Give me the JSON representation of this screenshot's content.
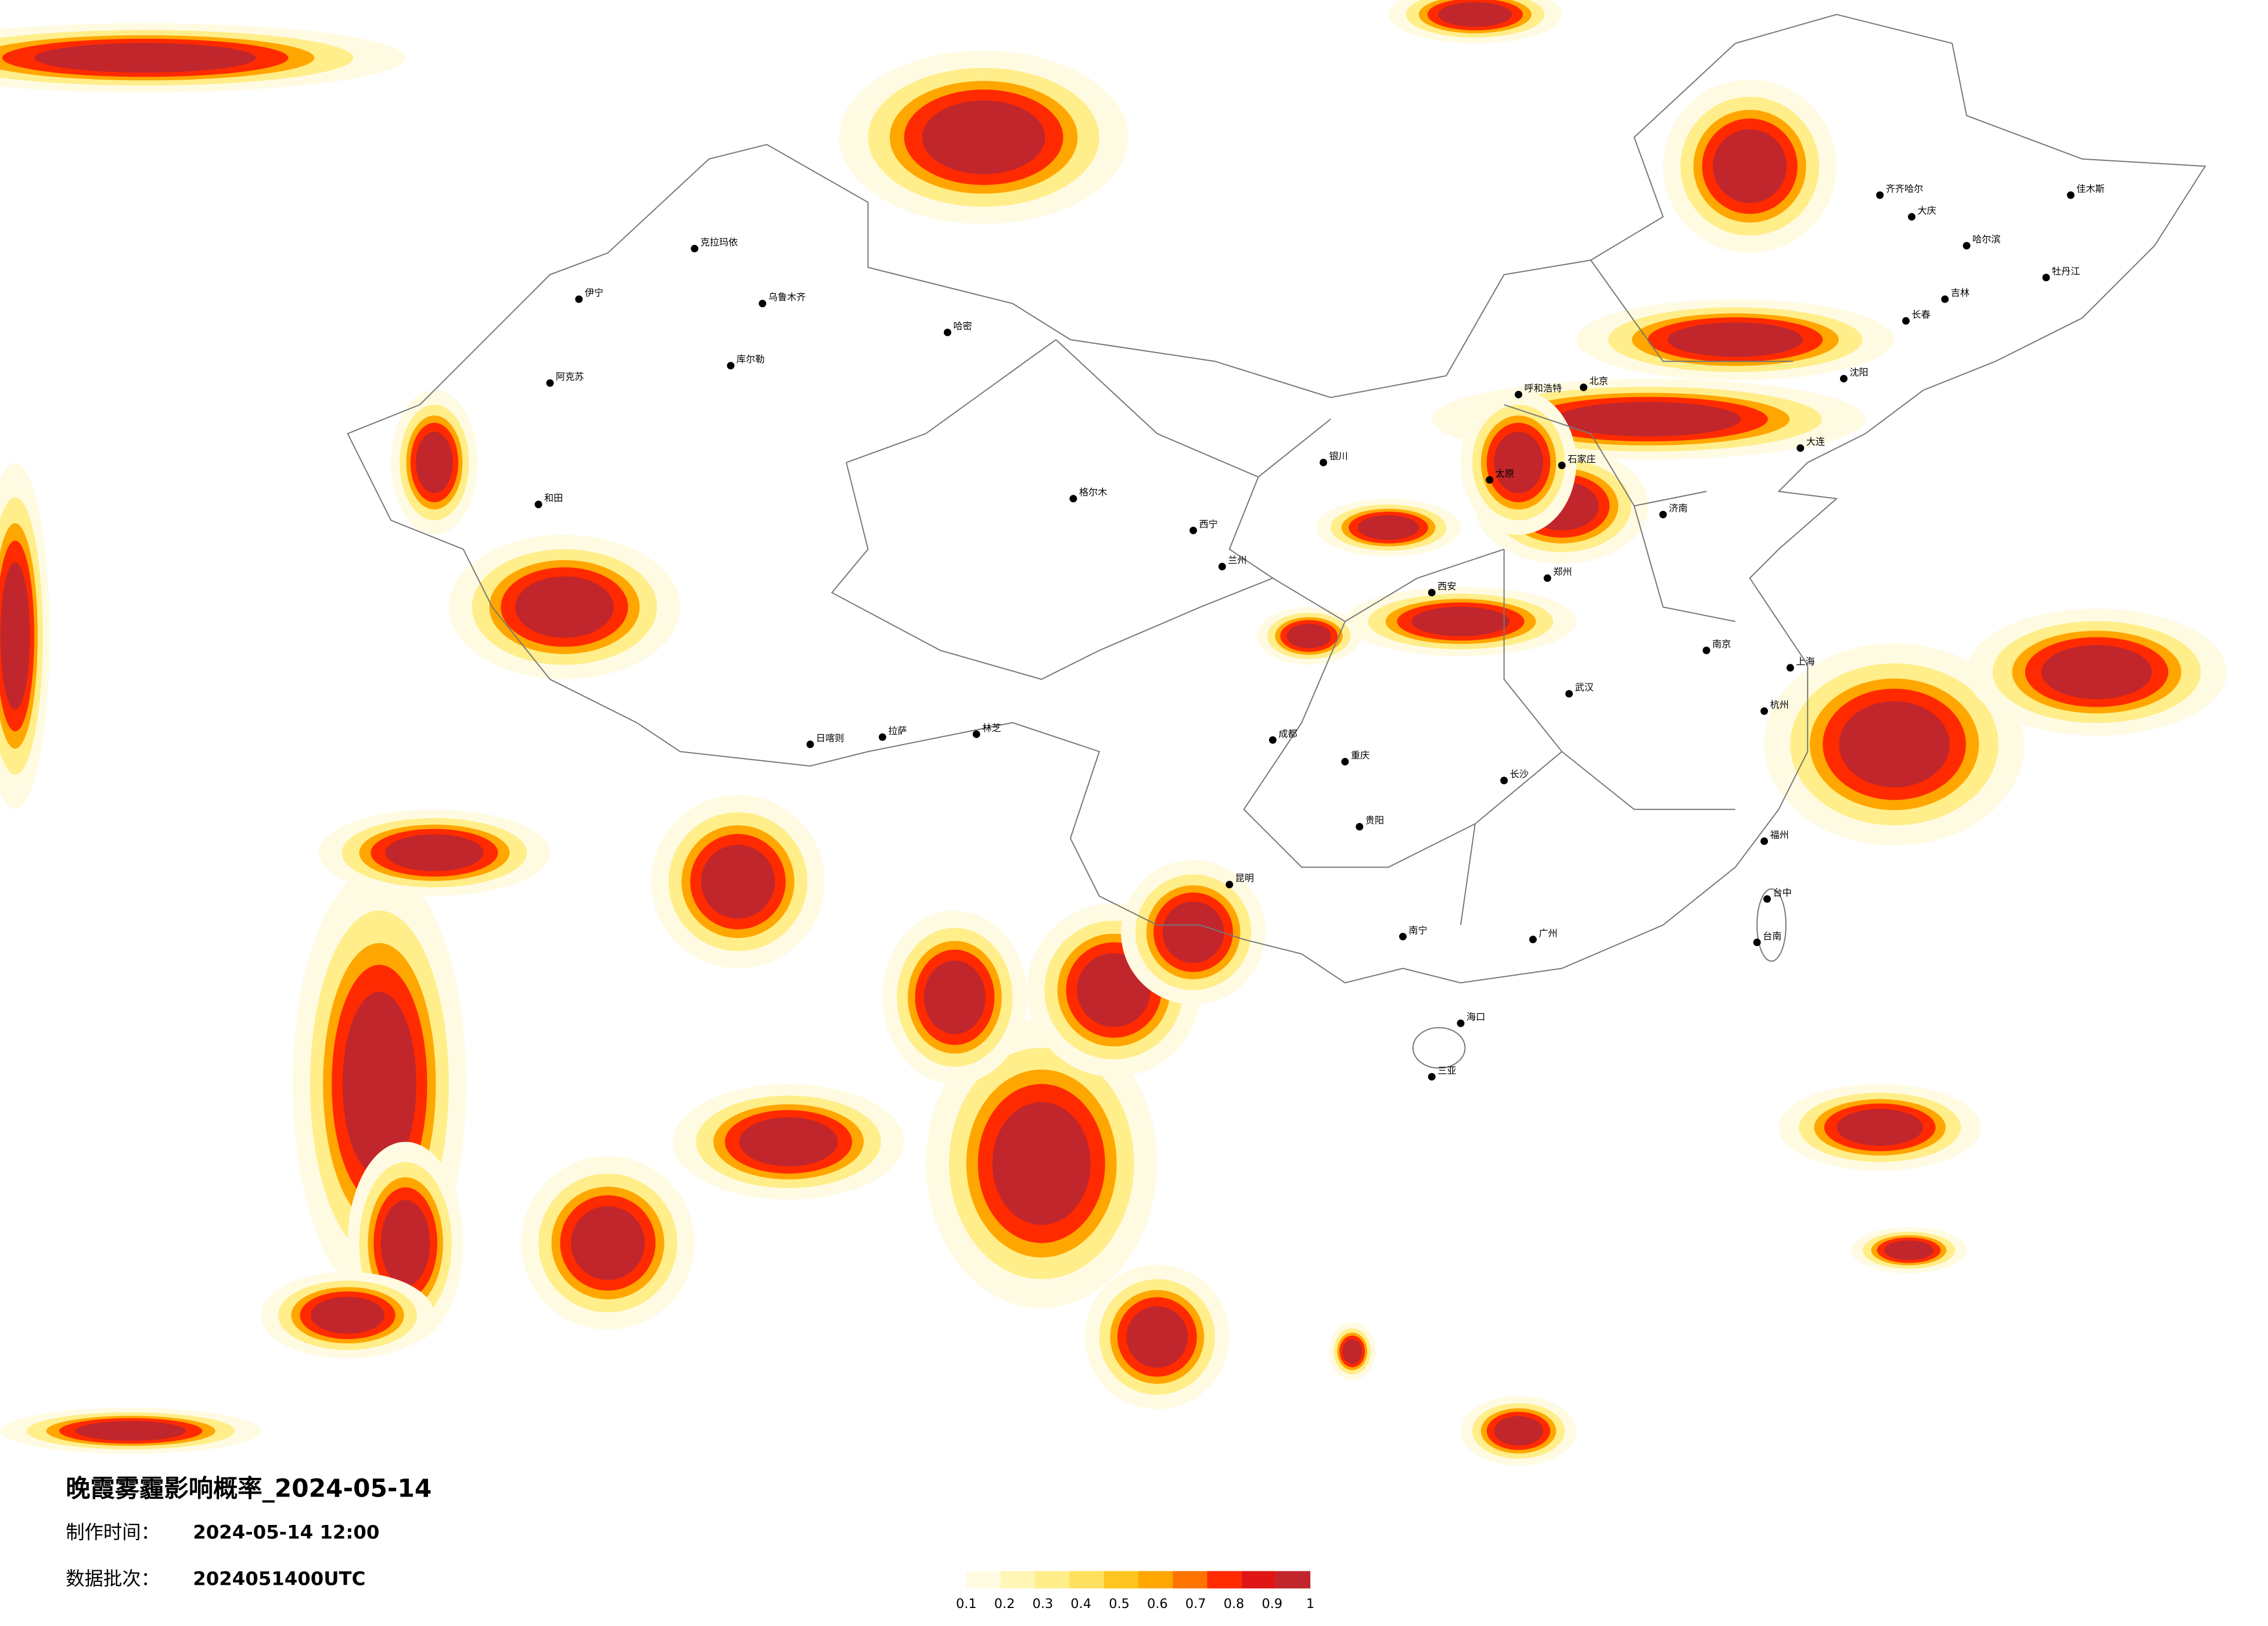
{
  "header": {
    "title": "晚霞雾霾影响概率_2024-05-14",
    "made_label": "制作时间：",
    "made_time": "2024-05-14 12:00",
    "batch_label": "数据批次：",
    "batch": "2024051400UTC"
  },
  "legend": {
    "ticks": [
      0.1,
      0.2,
      0.3,
      0.4,
      0.5,
      0.6,
      0.7,
      0.8,
      0.9,
      1
    ],
    "colors": [
      "#fffbe3",
      "#fff5b5",
      "#ffee8a",
      "#ffdf5e",
      "#ffc41f",
      "#ffa600",
      "#ff7400",
      "#ff2a00",
      "#e01515",
      "#c0262c"
    ]
  },
  "cities": [
    "克拉玛依",
    "伊宁",
    "乌鲁木齐",
    "库尔勒",
    "阿克苏",
    "哈密",
    "和田",
    "格尔木",
    "拉萨",
    "日喀则",
    "林芝",
    "西宁",
    "兰州",
    "银川",
    "呼和浩特",
    "哈尔滨",
    "齐齐哈尔",
    "大庆",
    "佳木斯",
    "牡丹江",
    "吉林",
    "长春",
    "沈阳",
    "大连",
    "北京",
    "石家庄",
    "太原",
    "济南",
    "郑州",
    "西安",
    "成都",
    "重庆",
    "昆明",
    "贵阳",
    "南宁",
    "广州",
    "长沙",
    "武汉",
    "南京",
    "上海",
    "杭州",
    "福州",
    "台中",
    "台南",
    "海口",
    "三亚"
  ]
}
